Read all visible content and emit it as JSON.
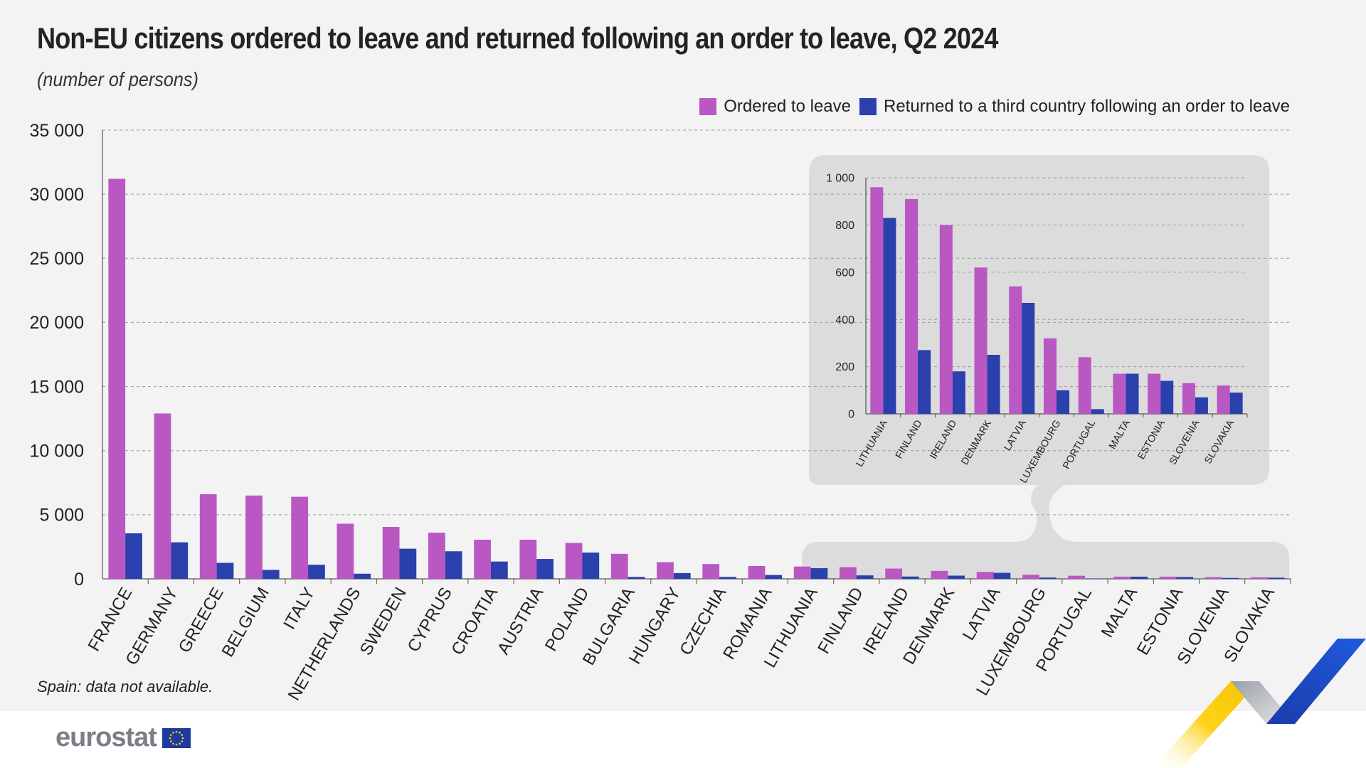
{
  "title": "Non-EU citizens ordered to leave and returned following an order to leave, Q2 2024",
  "subtitle": "(number of persons)",
  "note": "Spain: data not available.",
  "logo_text": "eurostat",
  "colors": {
    "ordered": "#b957c3",
    "returned": "#2a40ac",
    "panel_bg": "#f3f3f3",
    "inset_bg": "#dcdcdc"
  },
  "chart_data": [
    {
      "type": "bar",
      "categories": [
        "FRANCE",
        "GERMANY",
        "GREECE",
        "BELGIUM",
        "ITALY",
        "NETHERLANDS",
        "SWEDEN",
        "CYPRUS",
        "CROATIA",
        "AUSTRIA",
        "POLAND",
        "BULGARIA",
        "HUNGARY",
        "CZECHIA",
        "ROMANIA",
        "LITHUANIA",
        "FINLAND",
        "IRELAND",
        "DENMARK",
        "LATVIA",
        "LUXEMBOURG",
        "PORTUGAL",
        "MALTA",
        "ESTONIA",
        "SLOVENIA",
        "SLOVAKIA"
      ],
      "series": [
        {
          "name": "Ordered to leave",
          "values": [
            31200,
            12900,
            6600,
            6500,
            6400,
            4300,
            4050,
            3600,
            3050,
            3050,
            2800,
            1950,
            1300,
            1150,
            1000,
            960,
            910,
            800,
            620,
            540,
            320,
            240,
            170,
            170,
            130,
            120
          ]
        },
        {
          "name": "Returned to a third country following an order to leave",
          "values": [
            3550,
            2850,
            1250,
            700,
            1100,
            400,
            2350,
            2150,
            1350,
            1550,
            2050,
            150,
            450,
            150,
            300,
            830,
            270,
            180,
            250,
            470,
            100,
            20,
            170,
            140,
            70,
            90
          ]
        }
      ],
      "yticks": [
        "0",
        "5 000",
        "10 000",
        "15 000",
        "20 000",
        "25 000",
        "30 000",
        "35 000"
      ],
      "ylim": [
        0,
        35000
      ],
      "grid": true,
      "legend": "top-right"
    },
    {
      "type": "bar",
      "categories": [
        "LITHUANIA",
        "FINLAND",
        "IRELAND",
        "DENMARK",
        "LATVIA",
        "LUXEMBOURG",
        "PORTUGAL",
        "MALTA",
        "ESTONIA",
        "SLOVENIA",
        "SLOVAKIA"
      ],
      "series": [
        {
          "name": "Ordered to leave",
          "values": [
            960,
            910,
            800,
            620,
            540,
            320,
            240,
            170,
            170,
            130,
            120
          ]
        },
        {
          "name": "Returned to a third country following an order to leave",
          "values": [
            830,
            270,
            180,
            250,
            470,
            100,
            20,
            170,
            140,
            70,
            90
          ]
        }
      ],
      "yticks": [
        "0",
        "200",
        "400",
        "600",
        "800",
        "1 000"
      ],
      "ylim": [
        0,
        1000
      ],
      "grid": true
    }
  ]
}
